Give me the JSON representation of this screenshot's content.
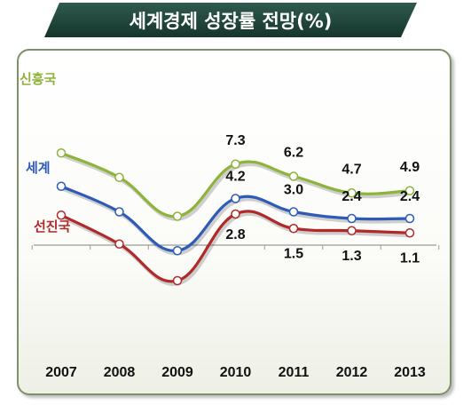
{
  "chart_data": {
    "type": "line",
    "title": "세계경제 성장률 전망(%)",
    "categories": [
      "2007",
      "2008",
      "2009",
      "2010",
      "2011",
      "2012",
      "2013"
    ],
    "series": [
      {
        "name": "신흥국",
        "color": "#8db33a",
        "values": [
          8.3,
          6.1,
          2.6,
          7.3,
          6.2,
          4.7,
          4.9
        ],
        "labels": {
          "3": "7.3",
          "4": "6.2",
          "5": "4.7",
          "6": "4.9"
        }
      },
      {
        "name": "세계",
        "color": "#2e5bb8",
        "values": [
          5.3,
          3.0,
          -0.5,
          4.2,
          3.0,
          2.4,
          2.4
        ],
        "labels": {
          "3": "4.2",
          "4": "3.0",
          "5": "2.4",
          "6": "2.4"
        }
      },
      {
        "name": "선진국",
        "color": "#b02a2a",
        "values": [
          2.7,
          0.1,
          -3.2,
          2.8,
          1.5,
          1.3,
          1.1
        ],
        "labels": {
          "3": "2.8",
          "4": "1.5",
          "5": "1.3",
          "6": "1.1"
        }
      }
    ],
    "ylim": [
      -6.3,
      13.0
    ],
    "grid": false,
    "legend": "inline-left"
  }
}
